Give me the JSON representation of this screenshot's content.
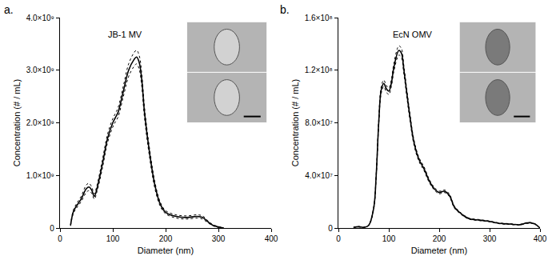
{
  "chart_data": [
    {
      "type": "line",
      "panel_label": "a.",
      "title": "JB-1 MV",
      "x_label": "Diameter (nm)",
      "y_label": "Concentration (# / mL)",
      "color": "#000000",
      "line_style": "solid",
      "grid": false,
      "xlim": [
        0,
        400
      ],
      "xticks": [
        0,
        100,
        200,
        300,
        400
      ],
      "ylim": [
        0,
        4000000000
      ],
      "yticks": [
        0,
        {
          "value": 1000000000,
          "label": "1.0×10⁹"
        },
        {
          "value": 2000000000,
          "label": "2.0×10⁹"
        },
        {
          "value": 3000000000,
          "label": "3.0×10⁹"
        },
        {
          "value": 4000000000,
          "label": "4.0×10⁹"
        }
      ],
      "x": [
        20,
        25,
        30,
        40,
        50,
        55,
        60,
        65,
        70,
        80,
        90,
        100,
        105,
        110,
        120,
        130,
        140,
        145,
        150,
        155,
        160,
        170,
        180,
        190,
        200,
        220,
        240,
        260,
        270,
        280,
        290,
        300,
        310
      ],
      "values": [
        50000000,
        300000000,
        400000000,
        550000000,
        750000000,
        780000000,
        720000000,
        600000000,
        750000000,
        1200000000,
        1700000000,
        2000000000,
        2100000000,
        2200000000,
        2600000000,
        3000000000,
        3200000000,
        3250000000,
        3150000000,
        2800000000,
        2200000000,
        1400000000,
        800000000,
        450000000,
        300000000,
        220000000,
        200000000,
        220000000,
        200000000,
        120000000,
        50000000,
        20000000,
        0
      ],
      "error": [
        10000000,
        30000000,
        40000000,
        50000000,
        70000000,
        70000000,
        60000000,
        50000000,
        60000000,
        80000000,
        80000000,
        80000000,
        80000000,
        90000000,
        100000000,
        120000000,
        130000000,
        130000000,
        130000000,
        120000000,
        100000000,
        80000000,
        60000000,
        40000000,
        30000000,
        30000000,
        30000000,
        30000000,
        30000000,
        20000000,
        10000000,
        10000000,
        0
      ]
    },
    {
      "type": "line",
      "panel_label": "b.",
      "title": "EcN OMV",
      "x_label": "Diameter (nm)",
      "y_label": "Concentration (# / mL)",
      "color": "#000000",
      "line_style": "solid",
      "grid": false,
      "xlim": [
        0,
        400
      ],
      "xticks": [
        0,
        100,
        200,
        300,
        400
      ],
      "ylim": [
        0,
        160000000
      ],
      "yticks": [
        0,
        {
          "value": 40000000,
          "label": "4.0×10⁷"
        },
        {
          "value": 80000000,
          "label": "8.0×10⁷"
        },
        {
          "value": 120000000,
          "label": "1.2×10⁸"
        },
        {
          "value": 160000000,
          "label": "1.6×10⁸"
        }
      ],
      "x": [
        30,
        40,
        50,
        60,
        70,
        75,
        80,
        85,
        90,
        95,
        100,
        105,
        110,
        120,
        125,
        130,
        140,
        150,
        160,
        170,
        180,
        190,
        200,
        210,
        220,
        230,
        240,
        250,
        260,
        280,
        300,
        320,
        340,
        360,
        370,
        380,
        390,
        400
      ],
      "values": [
        500000,
        1000000,
        500000,
        2000000,
        15000000,
        40000000,
        80000000,
        105000000,
        110000000,
        106000000,
        104000000,
        110000000,
        122000000,
        135000000,
        133000000,
        120000000,
        90000000,
        65000000,
        52000000,
        45000000,
        36000000,
        30000000,
        27000000,
        28000000,
        25000000,
        16000000,
        12000000,
        9000000,
        7000000,
        6000000,
        5000000,
        3500000,
        3000000,
        2500000,
        3500000,
        4000000,
        3000000,
        0
      ],
      "error": [
        100000,
        200000,
        100000,
        300000,
        1000000,
        1500000,
        2000000,
        2500000,
        2500000,
        2500000,
        2500000,
        2500000,
        3000000,
        3500000,
        3500000,
        3000000,
        2500000,
        2000000,
        1500000,
        1500000,
        1200000,
        1000000,
        1000000,
        1000000,
        1000000,
        800000,
        600000,
        500000,
        400000,
        400000,
        300000,
        300000,
        300000,
        200000,
        300000,
        300000,
        200000,
        0
      ]
    }
  ]
}
